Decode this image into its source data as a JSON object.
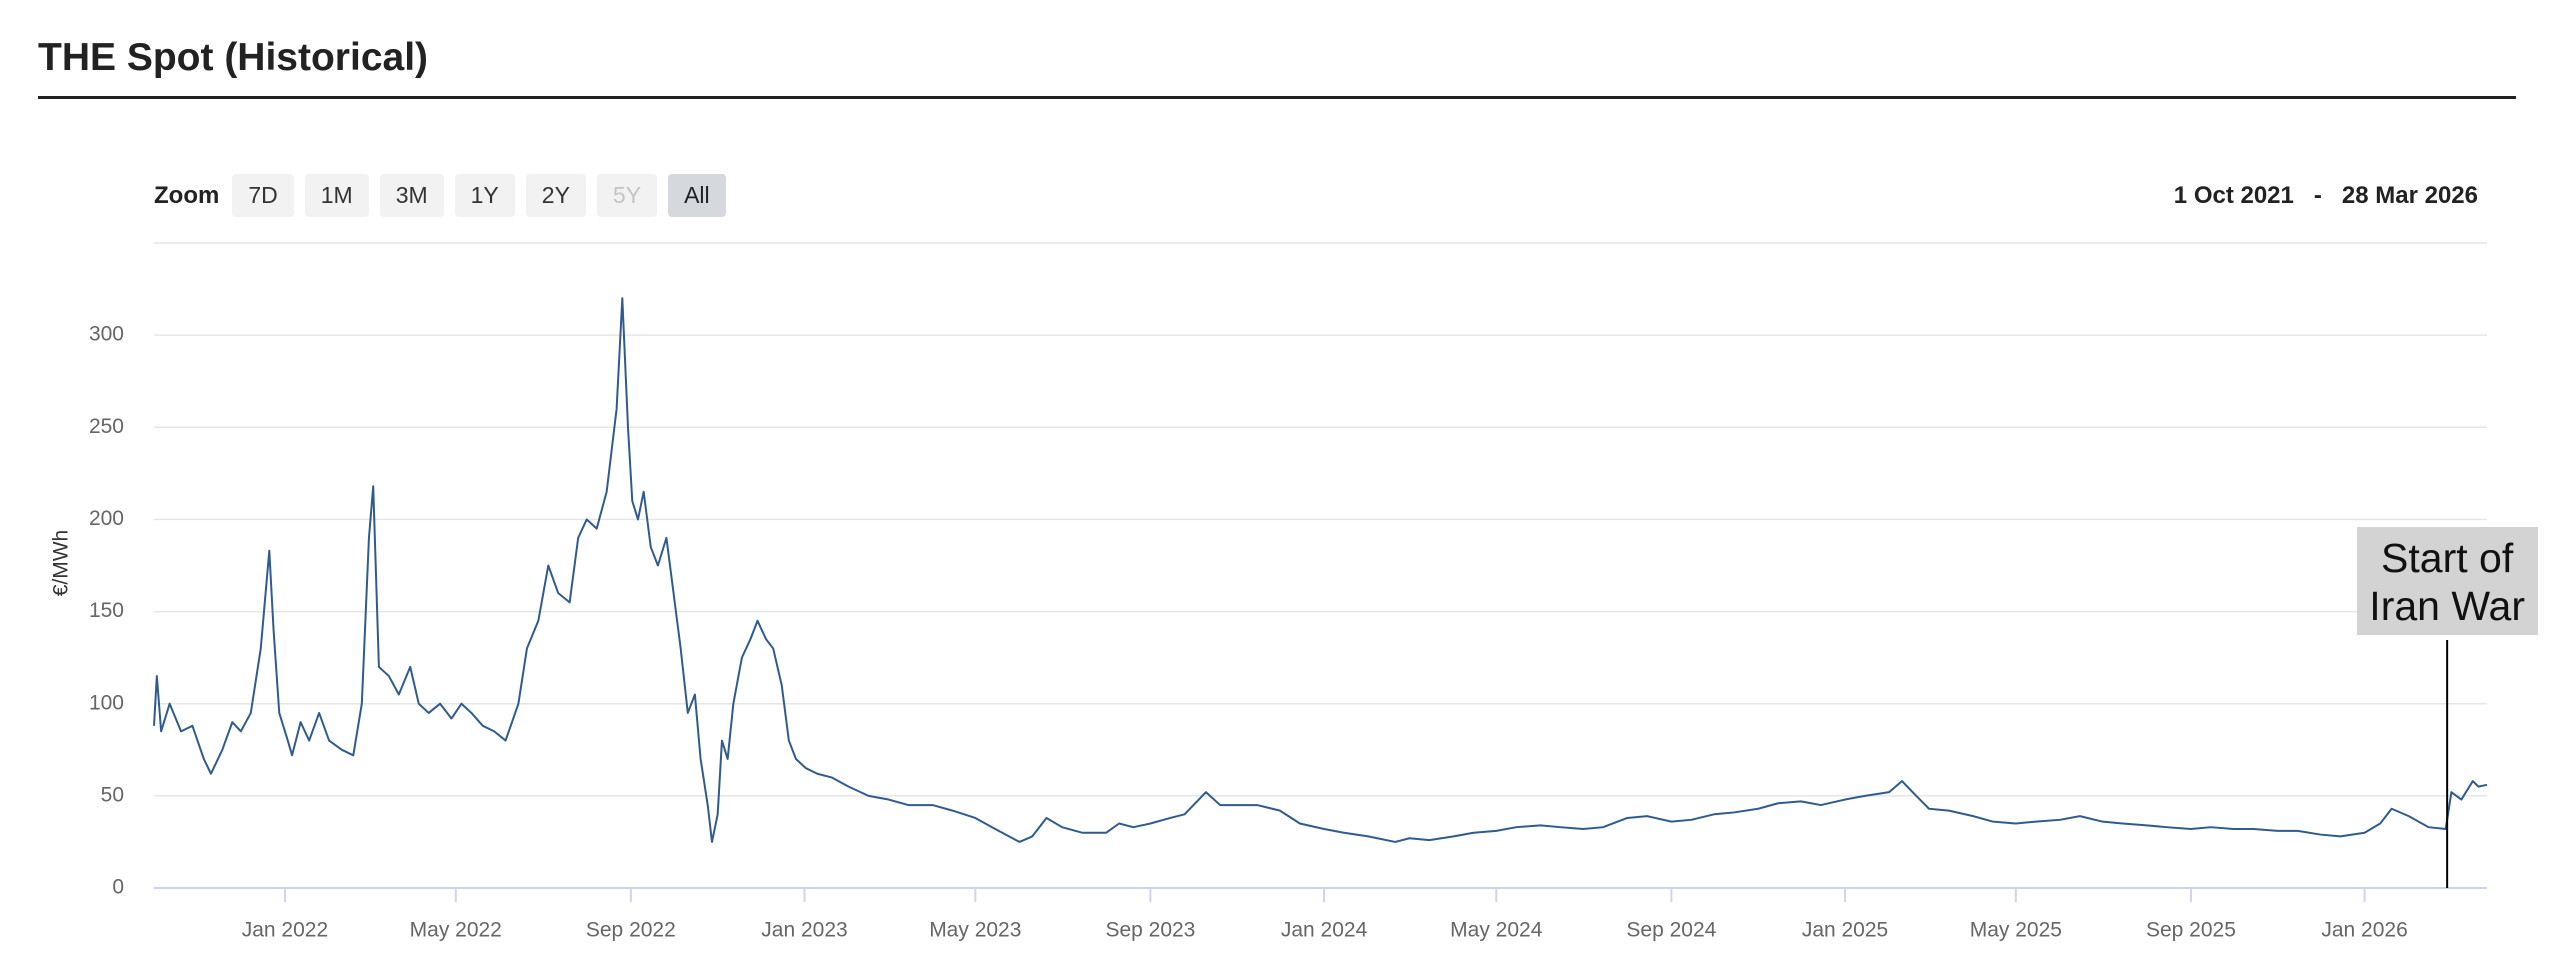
{
  "chart_data": {
    "type": "line",
    "title": "THE Spot (Historical)",
    "zoom": {
      "label": "Zoom",
      "buttons": [
        {
          "label": "7D"
        },
        {
          "label": "1M"
        },
        {
          "label": "3M"
        },
        {
          "label": "1Y"
        },
        {
          "label": "2Y"
        },
        {
          "label": "5Y",
          "disabled": true
        },
        {
          "label": "All",
          "selected": true
        }
      ]
    },
    "range": {
      "from": "1 Oct 2021",
      "separator": "-",
      "to": "28 Mar 2026"
    },
    "y_label": "€/MWh",
    "xlim": [
      "2021-10-01",
      "2026-03-28"
    ],
    "xticks": [
      {
        "value": "2022-01-01",
        "label": "Jan 2022"
      },
      {
        "value": "2022-05-01",
        "label": "May 2022"
      },
      {
        "value": "2022-09-01",
        "label": "Sep 2022"
      },
      {
        "value": "2023-01-01",
        "label": "Jan 2023"
      },
      {
        "value": "2023-05-01",
        "label": "May 2023"
      },
      {
        "value": "2023-09-01",
        "label": "Sep 2023"
      },
      {
        "value": "2024-01-01",
        "label": "Jan 2024"
      },
      {
        "value": "2024-05-01",
        "label": "May 2024"
      },
      {
        "value": "2024-09-01",
        "label": "Sep 2024"
      },
      {
        "value": "2025-01-01",
        "label": "Jan 2025"
      },
      {
        "value": "2025-05-01",
        "label": "May 2025"
      },
      {
        "value": "2025-09-01",
        "label": "Sep 2025"
      },
      {
        "value": "2026-01-01",
        "label": "Jan 2026"
      }
    ],
    "ylim": [
      0,
      350
    ],
    "yticks": [
      0,
      50,
      100,
      150,
      200,
      250,
      300
    ],
    "grid": true,
    "x": [
      "2021-10-01",
      "2021-10-03",
      "2021-10-06",
      "2021-10-12",
      "2021-10-20",
      "2021-10-28",
      "2021-11-05",
      "2021-11-10",
      "2021-11-18",
      "2021-11-25",
      "2021-12-01",
      "2021-12-08",
      "2021-12-15",
      "2021-12-21",
      "2021-12-24",
      "2021-12-28",
      "2022-01-03",
      "2022-01-06",
      "2022-01-12",
      "2022-01-18",
      "2022-01-25",
      "2022-02-01",
      "2022-02-10",
      "2022-02-18",
      "2022-02-24",
      "2022-03-01",
      "2022-03-04",
      "2022-03-08",
      "2022-03-15",
      "2022-03-22",
      "2022-03-30",
      "2022-04-05",
      "2022-04-12",
      "2022-04-20",
      "2022-04-28",
      "2022-05-05",
      "2022-05-12",
      "2022-05-20",
      "2022-05-28",
      "2022-06-05",
      "2022-06-14",
      "2022-06-20",
      "2022-06-28",
      "2022-07-05",
      "2022-07-12",
      "2022-07-20",
      "2022-07-26",
      "2022-08-01",
      "2022-08-08",
      "2022-08-15",
      "2022-08-22",
      "2022-08-26",
      "2022-08-30",
      "2022-09-02",
      "2022-09-06",
      "2022-09-10",
      "2022-09-15",
      "2022-09-20",
      "2022-09-26",
      "2022-10-01",
      "2022-10-06",
      "2022-10-11",
      "2022-10-16",
      "2022-10-20",
      "2022-10-25",
      "2022-10-28",
      "2022-11-01",
      "2022-11-04",
      "2022-11-08",
      "2022-11-12",
      "2022-11-18",
      "2022-11-24",
      "2022-11-29",
      "2022-12-05",
      "2022-12-10",
      "2022-12-16",
      "2022-12-21",
      "2022-12-26",
      "2023-01-02",
      "2023-01-10",
      "2023-01-20",
      "2023-02-01",
      "2023-02-15",
      "2023-03-01",
      "2023-03-15",
      "2023-04-01",
      "2023-04-15",
      "2023-05-01",
      "2023-05-15",
      "2023-06-01",
      "2023-06-10",
      "2023-06-20",
      "2023-07-01",
      "2023-07-15",
      "2023-08-01",
      "2023-08-10",
      "2023-08-20",
      "2023-09-01",
      "2023-09-15",
      "2023-09-25",
      "2023-10-10",
      "2023-10-20",
      "2023-11-01",
      "2023-11-15",
      "2023-12-01",
      "2023-12-15",
      "2024-01-01",
      "2024-01-15",
      "2024-02-01",
      "2024-02-20",
      "2024-03-01",
      "2024-03-15",
      "2024-04-01",
      "2024-04-15",
      "2024-05-01",
      "2024-05-15",
      "2024-06-01",
      "2024-06-15",
      "2024-07-01",
      "2024-07-15",
      "2024-08-01",
      "2024-08-15",
      "2024-09-01",
      "2024-09-15",
      "2024-10-01",
      "2024-10-15",
      "2024-11-01",
      "2024-11-15",
      "2024-12-01",
      "2024-12-15",
      "2025-01-01",
      "2025-01-15",
      "2025-02-01",
      "2025-02-10",
      "2025-02-20",
      "2025-03-01",
      "2025-03-15",
      "2025-04-01",
      "2025-04-15",
      "2025-05-01",
      "2025-05-15",
      "2025-06-01",
      "2025-06-15",
      "2025-07-01",
      "2025-07-15",
      "2025-08-01",
      "2025-08-15",
      "2025-09-01",
      "2025-09-15",
      "2025-10-01",
      "2025-10-15",
      "2025-11-01",
      "2025-11-15",
      "2025-12-01",
      "2025-12-15",
      "2026-01-01",
      "2026-01-12",
      "2026-01-20",
      "2026-02-01",
      "2026-02-15",
      "2026-02-27",
      "2026-03-03",
      "2026-03-10",
      "2026-03-18",
      "2026-03-22",
      "2026-03-28"
    ],
    "series": [
      {
        "color": "#2f5b8f",
        "values": [
          88,
          115,
          85,
          100,
          85,
          88,
          70,
          62,
          75,
          90,
          85,
          95,
          130,
          183,
          140,
          95,
          80,
          72,
          90,
          80,
          95,
          80,
          75,
          72,
          100,
          190,
          218,
          120,
          115,
          105,
          120,
          100,
          95,
          100,
          92,
          100,
          95,
          88,
          85,
          80,
          100,
          130,
          145,
          175,
          160,
          155,
          190,
          200,
          195,
          215,
          260,
          320,
          250,
          210,
          200,
          215,
          185,
          175,
          190,
          160,
          130,
          95,
          105,
          70,
          45,
          25,
          40,
          80,
          70,
          100,
          125,
          135,
          145,
          135,
          130,
          110,
          80,
          70,
          65,
          62,
          60,
          55,
          50,
          48,
          45,
          45,
          42,
          38,
          32,
          25,
          28,
          38,
          33,
          30,
          30,
          35,
          33,
          35,
          38,
          40,
          52,
          45,
          45,
          45,
          42,
          35,
          32,
          30,
          28,
          25,
          27,
          26,
          28,
          30,
          31,
          33,
          34,
          33,
          32,
          33,
          38,
          39,
          36,
          37,
          40,
          41,
          43,
          46,
          47,
          45,
          48,
          50,
          52,
          58,
          50,
          43,
          42,
          39,
          36,
          35,
          36,
          37,
          39,
          36,
          35,
          34,
          33,
          32,
          33,
          32,
          32,
          31,
          31,
          29,
          28,
          30,
          35,
          43,
          39,
          33,
          32,
          52,
          48,
          58,
          55,
          56
        ]
      }
    ],
    "annotation": {
      "text": "Start of Iran War",
      "x": "2026-02-28"
    }
  }
}
